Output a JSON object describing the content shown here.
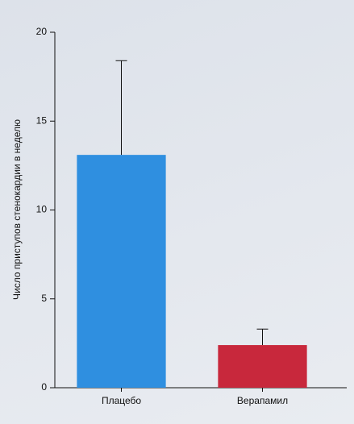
{
  "chart_data": {
    "type": "bar",
    "y_label": "Число приступов стенокардии в неделю",
    "categories": [
      "Плацебо",
      "Верапамил"
    ],
    "values": [
      13.1,
      2.4
    ],
    "errors": [
      5.3,
      0.9
    ],
    "colors": [
      "#2f8fe0",
      "#c8283c"
    ],
    "ylim": [
      0,
      20
    ],
    "yticks": [
      0,
      5,
      10,
      15,
      20
    ],
    "grid": false
  }
}
